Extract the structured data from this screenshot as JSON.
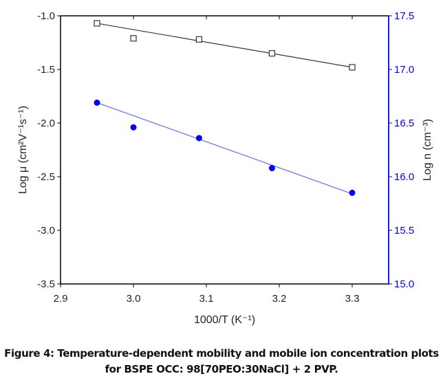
{
  "chart_data": {
    "type": "scatter",
    "xlabel": "1000/T (K⁻¹)",
    "ylabel_left": "Log μ (cm²V⁻¹s⁻¹)",
    "ylabel_right": "Log n (cm⁻³)",
    "xlim": [
      2.9,
      3.35
    ],
    "ylim_left": [
      -3.5,
      -1.0
    ],
    "ylim_right": [
      15.0,
      17.5
    ],
    "xticks": [
      "2.9",
      "3.0",
      "3.1",
      "3.2",
      "3.3"
    ],
    "yticks_left": [
      "-1.0",
      "-1.5",
      "-2.0",
      "-2.5",
      "-3.0",
      "-3.5"
    ],
    "yticks_right": [
      "17.5",
      "17.0",
      "16.5",
      "16.0",
      "15.5",
      "15.0"
    ],
    "series": [
      {
        "name": "Log mobility",
        "axis": "left",
        "marker": "open-square",
        "color": "#333333",
        "x": [
          2.95,
          3.0,
          3.09,
          3.19,
          3.3
        ],
        "y": [
          -1.07,
          -1.21,
          -1.22,
          -1.35,
          -1.48
        ],
        "fit": {
          "x": [
            2.95,
            3.3
          ],
          "y": [
            -1.07,
            -1.48
          ]
        }
      },
      {
        "name": "Log n",
        "axis": "right",
        "marker": "filled-circle",
        "color": "#0000ff",
        "fit_color": "#6666ff",
        "x": [
          2.95,
          3.0,
          3.09,
          3.19,
          3.3
        ],
        "y": [
          16.69,
          16.46,
          16.36,
          16.08,
          15.85
        ],
        "fit": {
          "x": [
            2.95,
            3.3
          ],
          "y": [
            16.69,
            15.84
          ]
        }
      }
    ]
  },
  "caption": {
    "line1": "Figure 4: Temperature-dependent mobility and mobile ion concentration plots",
    "line2": "for BSPE OCC: 98[70PEO:30NaCl] + 2 PVP."
  }
}
